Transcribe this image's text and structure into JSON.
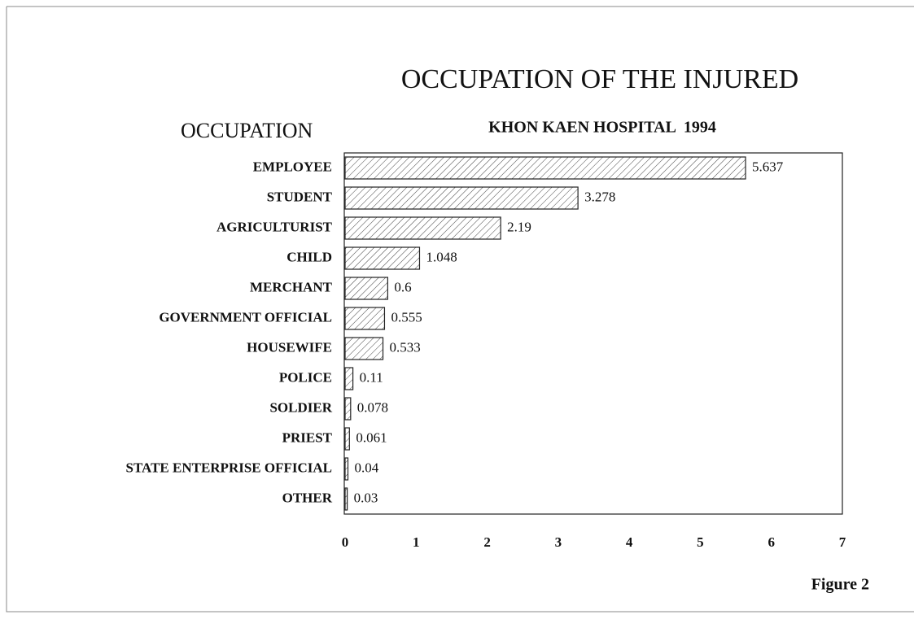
{
  "chart_data": {
    "type": "hbar",
    "title": "OCCUPATION OF THE INJURED",
    "subtitle": "KHON KAEN HOSPITAL  1994",
    "y_label": "OCCUPATION",
    "caption": "Figure 2",
    "categories": [
      "EMPLOYEE",
      "STUDENT",
      "AGRICULTURIST",
      "CHILD",
      "MERCHANT",
      "GOVERNMENT OFFICIAL",
      "HOUSEWIFE",
      "POLICE",
      "SOLDIER",
      "PRIEST",
      "STATE ENTERPRISE OFFICIAL",
      "OTHER"
    ],
    "values": [
      5.637,
      3.278,
      2.19,
      1.048,
      0.6,
      0.555,
      0.533,
      0.11,
      0.078,
      0.061,
      0.04,
      0.03
    ],
    "color": "#222222",
    "xlim": [
      0,
      7
    ],
    "xticks": [
      0,
      1,
      2,
      3,
      4,
      5,
      6,
      7
    ]
  }
}
